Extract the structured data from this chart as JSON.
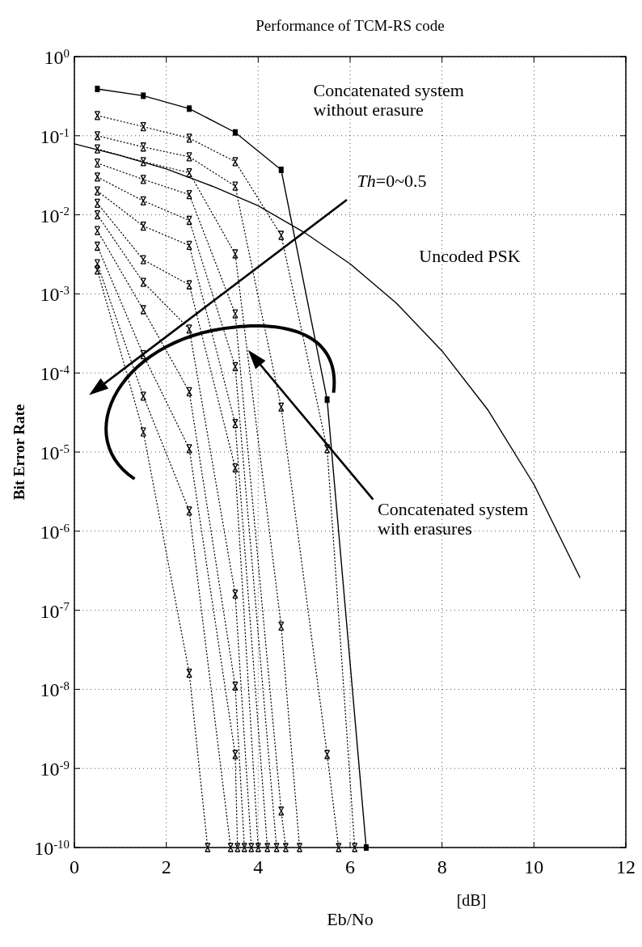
{
  "chart_data": {
    "type": "line",
    "title": "Performance of TCM-RS code",
    "xlabel": "Eb/No",
    "ylabel": "Bit Error Rate",
    "log": "y",
    "grid": true,
    "xlim": [
      0,
      12
    ],
    "xticks": [
      0,
      2,
      4,
      6,
      8,
      10,
      12
    ],
    "ylim": [
      1e-10,
      1
    ],
    "yticks": [
      {
        "value": 1,
        "label": "10$^{0}$"
      },
      {
        "value": 0.1,
        "label": "10$^{-1}$"
      },
      {
        "value": 0.01,
        "label": "10$^{-2}$"
      },
      {
        "value": 0.001,
        "label": "10$^{-3}$"
      },
      {
        "value": 0.0001,
        "label": "10$^{-4}$"
      },
      {
        "value": 1e-05,
        "label": "10$^{-5}$"
      },
      {
        "value": 1e-06,
        "label": "10$^{-6}$"
      },
      {
        "value": 1e-07,
        "label": "10$^{-7}$"
      },
      {
        "value": 1e-08,
        "label": "10$^{-8}$"
      },
      {
        "value": 1e-09,
        "label": "10$^{-9}$"
      },
      {
        "value": 1e-10,
        "label": "10$^{-10}$"
      }
    ],
    "series": [
      {
        "color": "#000000",
        "marker": "square",
        "line_style": "solid",
        "x": [
          0.5,
          1.5,
          2.5,
          3.5,
          4.5,
          5.5,
          6.35
        ],
        "values": [
          0.39,
          0.32,
          0.22,
          0.11,
          0.037,
          4.6e-05,
          1e-10
        ]
      },
      {
        "color": "#000000",
        "marker": "none",
        "line_style": "solid",
        "x": [
          0,
          1,
          2,
          3,
          4,
          5,
          6,
          7,
          8,
          9,
          10,
          11
        ],
        "values": [
          0.079,
          0.056,
          0.038,
          0.023,
          0.013,
          0.006,
          0.0024,
          0.00077,
          0.00019,
          3.4e-05,
          3.9e-06,
          2.6e-07
        ]
      },
      {
        "color": "#000000",
        "marker": "cross",
        "line_style": "dotted",
        "x": [
          0.5,
          1.5,
          2.5,
          3.5,
          4.5,
          5.5,
          6.1
        ],
        "values": [
          0.18,
          0.13,
          0.093,
          0.047,
          0.0055,
          1.1e-05,
          1e-10
        ]
      },
      {
        "color": "#000000",
        "marker": "cross",
        "line_style": "dotted",
        "x": [
          0.5,
          1.5,
          2.5,
          3.5,
          4.5,
          5.5,
          5.75
        ],
        "values": [
          0.1,
          0.072,
          0.054,
          0.023,
          3.7e-05,
          1.5e-09,
          1e-10
        ]
      },
      {
        "color": "#000000",
        "marker": "cross",
        "line_style": "dotted",
        "x": [
          0.5,
          1.5,
          2.5,
          3.5,
          4.5,
          4.9
        ],
        "values": [
          0.068,
          0.047,
          0.034,
          0.0032,
          6.3e-08,
          1e-10
        ]
      },
      {
        "color": "#000000",
        "marker": "cross",
        "line_style": "dotted",
        "x": [
          0.5,
          1.5,
          2.5,
          3.5,
          4.5,
          4.6
        ],
        "values": [
          0.045,
          0.028,
          0.018,
          0.00056,
          2.9e-10,
          1e-10
        ]
      },
      {
        "color": "#000000",
        "marker": "cross",
        "line_style": "dotted",
        "x": [
          0.5,
          1.5,
          2.5,
          3.5,
          4.4
        ],
        "values": [
          0.03,
          0.015,
          0.0085,
          0.00012,
          1e-10
        ]
      },
      {
        "color": "#000000",
        "marker": "cross",
        "line_style": "dotted",
        "x": [
          0.5,
          1.5,
          2.5,
          3.5,
          4.2
        ],
        "values": [
          0.02,
          0.0072,
          0.0041,
          2.3e-05,
          1e-10
        ]
      },
      {
        "color": "#000000",
        "marker": "cross",
        "line_style": "dotted",
        "x": [
          0.5,
          1.5,
          2.5,
          3.5,
          4.0
        ],
        "values": [
          0.014,
          0.0027,
          0.0013,
          6.3e-06,
          1e-10
        ]
      },
      {
        "color": "#000000",
        "marker": "cross",
        "line_style": "dotted",
        "x": [
          0.5,
          1.5,
          2.5,
          3.5,
          3.85
        ],
        "values": [
          0.01,
          0.0014,
          0.00036,
          1.6e-07,
          1e-10
        ]
      },
      {
        "color": "#000000",
        "marker": "cross",
        "line_style": "dotted",
        "x": [
          0.5,
          1.5,
          2.5,
          3.5,
          3.7
        ],
        "values": [
          0.0063,
          0.00063,
          5.8e-05,
          1.1e-08,
          1e-10
        ]
      },
      {
        "color": "#000000",
        "marker": "cross",
        "line_style": "dotted",
        "x": [
          0.5,
          1.5,
          2.5,
          3.5,
          3.55
        ],
        "values": [
          0.004,
          0.00017,
          1.1e-05,
          1.5e-09,
          1e-10
        ]
      },
      {
        "color": "#000000",
        "marker": "cross",
        "line_style": "dotted",
        "x": [
          0.5,
          1.5,
          2.5,
          3.4
        ],
        "values": [
          0.0024,
          5.1e-05,
          1.8e-06,
          1e-10
        ]
      },
      {
        "color": "#000000",
        "marker": "cross",
        "line_style": "dotted",
        "x": [
          0.5,
          1.5,
          2.5,
          2.9
        ],
        "values": [
          0.002,
          1.8e-05,
          1.6e-08,
          1e-10
        ]
      }
    ],
    "annotations": [
      "Concatenated system\nwithout erasure",
      "Th=0~0.5",
      "Uncoded PSK",
      "Concatenated system\nwith erasures",
      "[dB]"
    ]
  }
}
